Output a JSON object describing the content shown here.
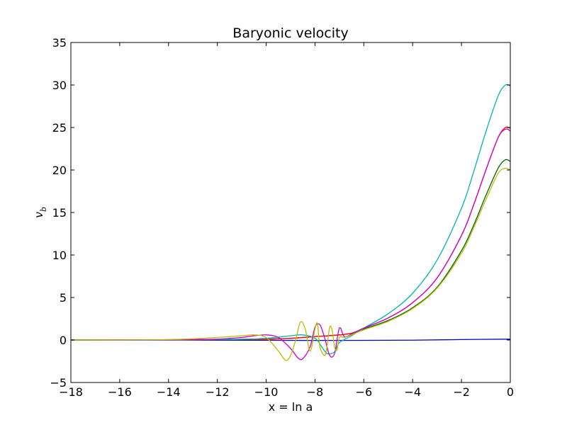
{
  "chart_data": {
    "type": "line",
    "title": "Baryonic velocity",
    "xlabel": "x = ln a",
    "ylabel": "v",
    "ylabel_subscript": "b",
    "xlim": [
      -18,
      0
    ],
    "ylim": [
      -5,
      35
    ],
    "xticks": [
      -18,
      -16,
      -14,
      -12,
      -10,
      -8,
      -6,
      -4,
      -2,
      0
    ],
    "yticks": [
      -5,
      0,
      5,
      10,
      15,
      20,
      25,
      30,
      35
    ],
    "grid": false,
    "series": [
      {
        "color": "#0000cc",
        "x": [
          -18,
          -14,
          -10,
          -8,
          -6,
          -4,
          -2,
          0
        ],
        "y": [
          0,
          -0.01,
          -0.03,
          -0.05,
          -0.04,
          -0.02,
          0.05,
          0.1
        ]
      },
      {
        "color": "#006400",
        "x": [
          -18,
          -12,
          -10,
          -9,
          -8,
          -7,
          -6.5,
          -6,
          -5,
          -4,
          -3,
          -2,
          -1.5,
          -1,
          -0.5,
          -0.2,
          0
        ],
        "y": [
          0,
          0.05,
          0.1,
          0.2,
          0.4,
          0.6,
          0.8,
          1.3,
          2.3,
          3.8,
          6.2,
          10.5,
          13.5,
          17,
          20.2,
          21.2,
          21.0
        ]
      },
      {
        "color": "#ff0000",
        "x": [
          -18,
          -12,
          -10,
          -9,
          -8,
          -7,
          -6.5,
          -6,
          -5,
          -4,
          -3,
          -2,
          -1.5,
          -1,
          -0.5,
          -0.2,
          0
        ],
        "y": [
          0,
          0.05,
          0.1,
          0.2,
          0.4,
          0.6,
          0.8,
          1.4,
          2.6,
          4.4,
          7.3,
          12.3,
          15.9,
          20,
          23.8,
          25.0,
          24.9
        ]
      },
      {
        "color": "#00b4b4",
        "x": [
          -18,
          -14,
          -12,
          -11,
          -10,
          -9,
          -8.5,
          -8,
          -7.7,
          -7.5,
          -7.2,
          -7,
          -6.5,
          -6,
          -5,
          -4,
          -3,
          -2,
          -1.5,
          -1,
          -0.5,
          -0.2,
          0
        ],
        "y": [
          0,
          0.02,
          0.05,
          0.1,
          0.2,
          0.5,
          0.6,
          0.2,
          -0.9,
          -1.6,
          -1.4,
          -0.3,
          0.5,
          1.4,
          3.1,
          5.5,
          9.4,
          15.5,
          19.8,
          24.5,
          28.7,
          30.0,
          29.9
        ]
      },
      {
        "color": "#cc00cc",
        "x": [
          -18,
          -14,
          -12,
          -11,
          -10.5,
          -10,
          -9.5,
          -9,
          -8.7,
          -8.5,
          -8.2,
          -8,
          -7.8,
          -7.6,
          -7.4,
          -7.2,
          -7,
          -6.8,
          -6.5,
          -6,
          -5,
          -4,
          -3,
          -2,
          -1.5,
          -1,
          -0.5,
          -0.2,
          0
        ],
        "y": [
          0,
          0.02,
          0.1,
          0.3,
          0.5,
          0.6,
          0.3,
          -1.0,
          -2.1,
          -2.2,
          -0.8,
          1.5,
          1.8,
          0.2,
          -1.8,
          -1.6,
          1.4,
          0.4,
          0.7,
          1.4,
          2.6,
          4.4,
          7.3,
          12.3,
          15.9,
          20,
          23.8,
          24.8,
          24.6
        ]
      },
      {
        "color": "#bbbb00",
        "x": [
          -18,
          -14,
          -12,
          -11,
          -10.5,
          -10,
          -9.5,
          -9.2,
          -9,
          -8.8,
          -8.6,
          -8.4,
          -8.2,
          -8,
          -7.9,
          -7.8,
          -7.6,
          -7.5,
          -7.4,
          -7.3,
          -7.2,
          -7.1,
          -7,
          -6.8,
          -6.5,
          -6,
          -5,
          -4,
          -3,
          -2,
          -1.5,
          -1,
          -0.5,
          -0.2,
          0
        ],
        "y": [
          0,
          0.05,
          0.3,
          0.5,
          0.6,
          0.3,
          -1.3,
          -2.4,
          -1.8,
          -0.1,
          2.1,
          1.3,
          -1.3,
          1.3,
          1.9,
          -0.8,
          -1.8,
          -0.6,
          1.5,
          1.2,
          -0.8,
          -1.2,
          0.3,
          0.3,
          0.6,
          1.2,
          2.2,
          3.7,
          6.1,
          10.2,
          13.2,
          16.5,
          19.6,
          20.2,
          20.0
        ]
      }
    ]
  }
}
